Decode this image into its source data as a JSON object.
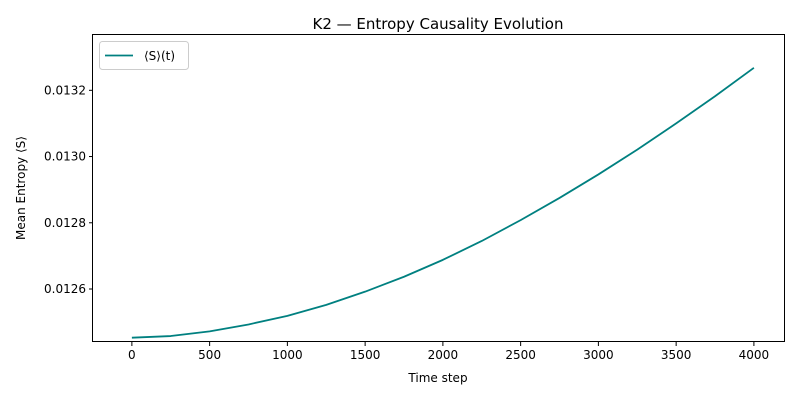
{
  "chart_data": {
    "type": "line",
    "title": "K2 — Entropy Causality Evolution",
    "xlabel": "Time step",
    "ylabel": "Mean Entropy ⟨S⟩",
    "xlim": [
      -250,
      4200
    ],
    "ylim": [
      0.01244,
      0.013367
    ],
    "xticks": [
      0,
      500,
      1000,
      1500,
      2000,
      2500,
      3000,
      3500,
      4000
    ],
    "xtick_labels": [
      "0",
      "500",
      "1000",
      "1500",
      "2000",
      "2500",
      "3000",
      "3500",
      "4000"
    ],
    "yticks": [
      0.0126,
      0.0128,
      0.013,
      0.0132
    ],
    "ytick_labels": [
      "0.0126",
      "0.0128",
      "0.0130",
      "0.0132"
    ],
    "grid": false,
    "legend_position": "top-left",
    "series": [
      {
        "name": "⟨S⟩(t)",
        "color": "#008080",
        "x": [
          0,
          250,
          500,
          750,
          1000,
          1250,
          1500,
          1750,
          2000,
          2250,
          2500,
          2750,
          3000,
          3250,
          3500,
          3750,
          4000
        ],
        "y": [
          0.012453,
          0.012458,
          0.012472,
          0.012493,
          0.012519,
          0.012552,
          0.012592,
          0.012637,
          0.012688,
          0.012745,
          0.012808,
          0.012875,
          0.012946,
          0.013021,
          0.0131,
          0.013182,
          0.013268
        ]
      }
    ]
  }
}
